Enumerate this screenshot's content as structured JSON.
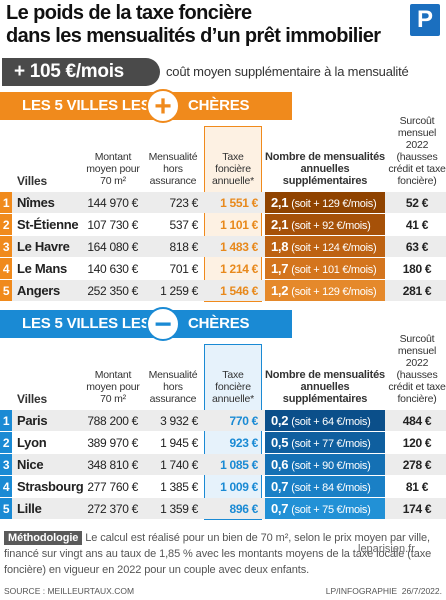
{
  "header": {
    "title_lines": [
      "Le poids de la taxe foncière",
      "dans les mensualités d’un prêt immobilier"
    ],
    "logo": "P"
  },
  "banner": {
    "amount": "+ 105 €/mois",
    "text": "coût moyen supplémentaire à la mensualité"
  },
  "sections": [
    {
      "heading_before": "LES 5 VILLES LES",
      "heading_symbol": "+",
      "heading_after": "CHÈRES",
      "columns": [
        "Villes",
        "Montant moyen pour 70 m²",
        "Mensualité hors assurance",
        "Taxe foncière annuelle*",
        "Nombre de mensualités annuelles supplémentaires",
        "Surcoût mensuel 2022 (hausses crédit et taxe foncière)"
      ],
      "rows": [
        {
          "rank": "1",
          "city": "Nîmes",
          "amount": "144 970 €",
          "monthly": "723 €",
          "tax": "1 551 €",
          "extra_count": "2,1",
          "extra_detail": "(soit + 129 €/mois)",
          "surcharge": "52 €"
        },
        {
          "rank": "2",
          "city": "St-Étienne",
          "amount": "107 730 €",
          "monthly": "537 €",
          "tax": "1 101 €",
          "extra_count": "2,1",
          "extra_detail": "(soit + 92 €/mois)",
          "surcharge": "41 €"
        },
        {
          "rank": "3",
          "city": "Le Havre",
          "amount": "164 080 €",
          "monthly": "818 €",
          "tax": "1 483 €",
          "extra_count": "1,8",
          "extra_detail": "(soit + 124 €/mois)",
          "surcharge": "63 €"
        },
        {
          "rank": "4",
          "city": "Le Mans",
          "amount": "140 630 €",
          "monthly": "701 €",
          "tax": "1 214 €",
          "extra_count": "1,7",
          "extra_detail": "(soit + 101 €/mois)",
          "surcharge": "180 €"
        },
        {
          "rank": "5",
          "city": "Angers",
          "amount": "252 350 €",
          "monthly": "1 259 €",
          "tax": "1 546 €",
          "extra_count": "1,2",
          "extra_detail": "(soit + 129 €/mois)",
          "surcharge": "281 €"
        }
      ]
    },
    {
      "heading_before": "LES 5 VILLES LES",
      "heading_symbol": "−",
      "heading_after": "CHÈRES",
      "columns": [
        "Villes",
        "Montant moyen pour 70 m²",
        "Mensualité hors assurance",
        "Taxe foncière annuelle*",
        "Nombre de mensualités annuelles supplémentaires",
        "Surcoût mensuel 2022 (hausses crédit et taxe foncière)"
      ],
      "rows": [
        {
          "rank": "1",
          "city": "Paris",
          "amount": "788 200 €",
          "monthly": "3 932 €",
          "tax": "770 €",
          "extra_count": "0,2",
          "extra_detail": "(soit + 64 €/mois)",
          "surcharge": "484 €"
        },
        {
          "rank": "2",
          "city": "Lyon",
          "amount": "389 970 €",
          "monthly": "1 945 €",
          "tax": "923 €",
          "extra_count": "0,5",
          "extra_detail": "(soit + 77 €/mois)",
          "surcharge": "120 €"
        },
        {
          "rank": "3",
          "city": "Nice",
          "amount": "348 810 €",
          "monthly": "1 740 €",
          "tax": "1 085 €",
          "extra_count": "0,6",
          "extra_detail": "(soit + 90 €/mois)",
          "surcharge": "278 €"
        },
        {
          "rank": "4",
          "city": "Strasbourg",
          "amount": "277 760 €",
          "monthly": "1 385 €",
          "tax": "1 009 €",
          "extra_count": "0,7",
          "extra_detail": "(soit + 84 €/mois)",
          "surcharge": "81 €"
        },
        {
          "rank": "5",
          "city": "Lille",
          "amount": "272 370 €",
          "monthly": "1 359 €",
          "tax": "896 €",
          "extra_count": "0,7",
          "extra_detail": "(soit + 75 €/mois)",
          "surcharge": "174 €"
        }
      ]
    }
  ],
  "methodology": {
    "label": "Méthodologie",
    "text": "Le calcul est réalisé pour un bien de 70 m², selon le prix moyen par ville, financé sur vingt ans au taux de 1,85 % avec les montants moyens de la taxe locale (taxe foncière) en vigueur en 2022 pour un couple avec deux enfants."
  },
  "footer": {
    "source": "SOURCE : MEILLEURTAUX.COM",
    "credit": "LP/INFOGRAPHIE  26/7/2022.",
    "watermark": "leparisien.fr"
  }
}
